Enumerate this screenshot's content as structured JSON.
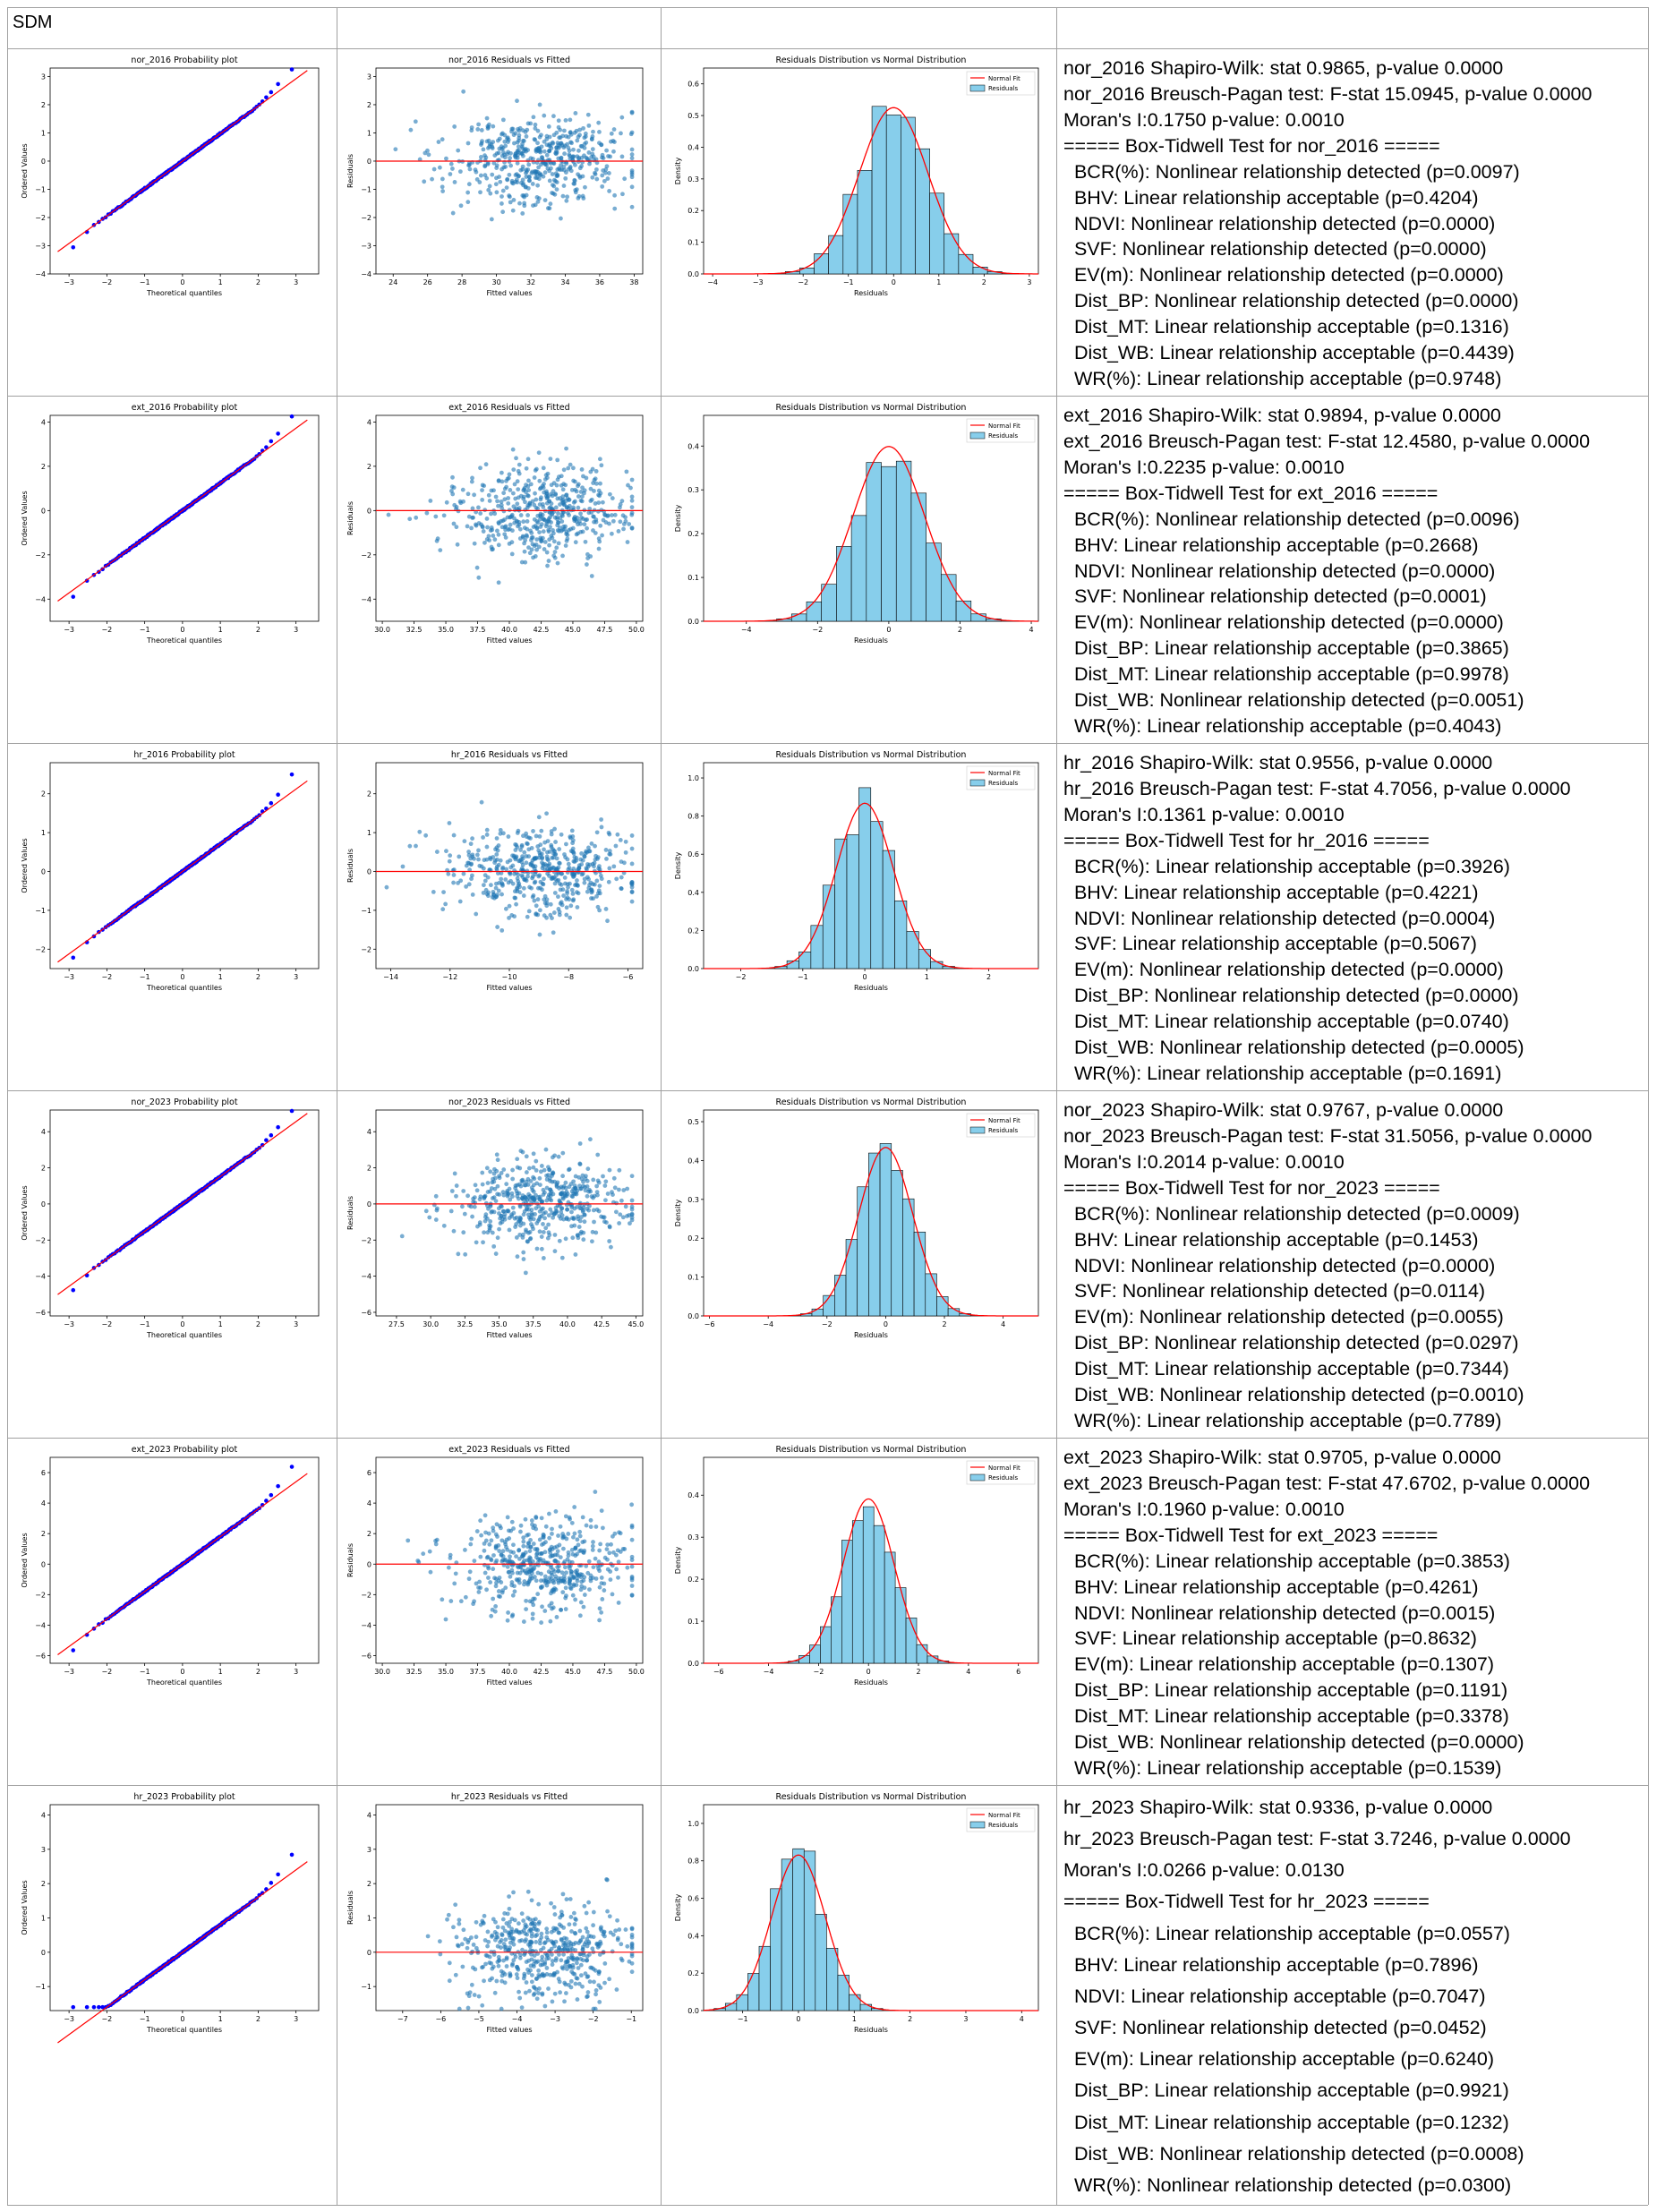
{
  "header": {
    "label": "SDM",
    "cells": [
      "",
      "",
      ""
    ]
  },
  "colors": {
    "qq_points": "#0000ff",
    "fit_line": "#ff0000",
    "scatter_points": "#1f77b4",
    "hist_fill": "#87ceeb",
    "grid_border": "#a0a0a0"
  },
  "common": {
    "qq_xlabel": "Theoretical quantiles",
    "qq_ylabel": "Ordered Values",
    "res_xlabel": "Fitted values",
    "res_ylabel": "Residuals",
    "hist_title": "Residuals Distribution vs Normal Distribution",
    "hist_xlabel": "Residuals",
    "hist_ylabel": "Density",
    "legend_fit": "Normal Fit",
    "legend_res": "Residuals"
  },
  "rows": [
    {
      "id": "nor_2016",
      "qq": {
        "title": "nor_2016 Probability plot",
        "x_ticks": [
          "−3",
          "−2",
          "−1",
          "0",
          "1",
          "2",
          "3"
        ],
        "y_ticks": [
          "−4",
          "−3",
          "−2",
          "−1",
          "0",
          "1",
          "2",
          "3"
        ],
        "ylim": [
          -4,
          3.3
        ]
      },
      "resid": {
        "title": "nor_2016 Residuals vs Fitted",
        "x_ticks": [
          "24",
          "26",
          "28",
          "30",
          "32",
          "34",
          "36",
          "38"
        ],
        "xlim": [
          23,
          38.5
        ],
        "y_ticks": [
          "−4",
          "−3",
          "−2",
          "−1",
          "0",
          "1",
          "2",
          "3"
        ],
        "ylim": [
          -4,
          3.3
        ]
      },
      "hist": {
        "x_ticks": [
          "−4",
          "−3",
          "−2",
          "−1",
          "0",
          "1",
          "2",
          "3"
        ],
        "xlim": [
          -4.2,
          3.2
        ],
        "y_ticks": [
          "0.0",
          "0.1",
          "0.2",
          "0.3",
          "0.4",
          "0.5",
          "0.6"
        ],
        "ymax": 0.65,
        "mu": 0,
        "sd": 0.76
      },
      "stats": [
        "nor_2016 Shapiro-Wilk: stat 0.9865, p-value 0.0000",
        "nor_2016 Breusch-Pagan test: F-stat 15.0945, p-value 0.0000",
        "Moran's I:0.1750 p-value: 0.0010",
        "===== Box-Tidwell Test for nor_2016 =====",
        "  BCR(%): Nonlinear relationship detected (p=0.0097)",
        "  BHV: Linear relationship acceptable (p=0.4204)",
        "  NDVI: Nonlinear relationship detected (p=0.0000)",
        "  SVF: Nonlinear relationship detected (p=0.0000)",
        "  EV(m): Nonlinear relationship detected (p=0.0000)",
        "  Dist_BP: Nonlinear relationship detected (p=0.0000)",
        "  Dist_MT: Linear relationship acceptable (p=0.1316)",
        "  Dist_WB: Linear relationship acceptable (p=0.4439)",
        "  WR(%): Linear relationship acceptable (p=0.9748)"
      ]
    },
    {
      "id": "ext_2016",
      "qq": {
        "title": "ext_2016 Probability plot",
        "x_ticks": [
          "−3",
          "−2",
          "−1",
          "0",
          "1",
          "2",
          "3"
        ],
        "y_ticks": [
          "−4",
          "−2",
          "0",
          "2",
          "4"
        ],
        "ylim": [
          -5,
          4.3
        ]
      },
      "resid": {
        "title": "ext_2016 Residuals vs Fitted",
        "x_ticks": [
          "30.0",
          "32.5",
          "35.0",
          "37.5",
          "40.0",
          "42.5",
          "45.0",
          "47.5",
          "50.0"
        ],
        "xlim": [
          29.5,
          50.5
        ],
        "y_ticks": [
          "−4",
          "−2",
          "0",
          "2",
          "4"
        ],
        "ylim": [
          -5,
          4.3
        ]
      },
      "hist": {
        "x_ticks": [
          "−4",
          "−2",
          "0",
          "2",
          "4"
        ],
        "xlim": [
          -5.2,
          4.2
        ],
        "y_ticks": [
          "0.0",
          "0.1",
          "0.2",
          "0.3",
          "0.4"
        ],
        "ymax": 0.47,
        "mu": 0,
        "sd": 1.0
      },
      "stats": [
        "ext_2016 Shapiro-Wilk: stat 0.9894, p-value 0.0000",
        "ext_2016 Breusch-Pagan test: F-stat 12.4580, p-value 0.0000",
        "Moran's I:0.2235 p-value: 0.0010",
        "===== Box-Tidwell Test for ext_2016 =====",
        "  BCR(%): Nonlinear relationship detected (p=0.0096)",
        "  BHV: Linear relationship acceptable (p=0.2668)",
        "  NDVI: Nonlinear relationship detected (p=0.0000)",
        "  SVF: Nonlinear relationship detected (p=0.0001)",
        "  EV(m): Nonlinear relationship detected (p=0.0000)",
        "  Dist_BP: Linear relationship acceptable (p=0.3865)",
        "  Dist_MT: Linear relationship acceptable (p=0.9978)",
        "  Dist_WB: Nonlinear relationship detected (p=0.0051)",
        "  WR(%): Linear relationship acceptable (p=0.4043)"
      ]
    },
    {
      "id": "hr_2016",
      "qq": {
        "title": "hr_2016 Probability plot",
        "x_ticks": [
          "−3",
          "−2",
          "−1",
          "0",
          "1",
          "2",
          "3"
        ],
        "y_ticks": [
          "−2",
          "−1",
          "0",
          "1",
          "2"
        ],
        "ylim": [
          -2.5,
          2.8
        ]
      },
      "resid": {
        "title": "hr_2016 Residuals vs Fitted",
        "x_ticks": [
          "−14",
          "−12",
          "−10",
          "−8",
          "−6"
        ],
        "xlim": [
          -14.5,
          -5.5
        ],
        "y_ticks": [
          "−2",
          "−1",
          "0",
          "1",
          "2"
        ],
        "ylim": [
          -2.5,
          2.8
        ]
      },
      "hist": {
        "x_ticks": [
          "−2",
          "−1",
          "0",
          "1",
          "2"
        ],
        "xlim": [
          -2.6,
          2.8
        ],
        "y_ticks": [
          "0.0",
          "0.2",
          "0.4",
          "0.6",
          "0.8",
          "1.0"
        ],
        "ymax": 1.08,
        "mu": 0,
        "sd": 0.46
      },
      "stats": [
        "hr_2016 Shapiro-Wilk: stat 0.9556, p-value 0.0000",
        "hr_2016 Breusch-Pagan test: F-stat 4.7056, p-value 0.0000",
        "Moran's I:0.1361 p-value: 0.0010",
        "===== Box-Tidwell Test for hr_2016 =====",
        "  BCR(%): Linear relationship acceptable (p=0.3926)",
        "  BHV: Linear relationship acceptable (p=0.4221)",
        "  NDVI: Nonlinear relationship detected (p=0.0004)",
        "  SVF: Linear relationship acceptable (p=0.5067)",
        "  EV(m): Nonlinear relationship detected (p=0.0000)",
        "  Dist_BP: Nonlinear relationship detected (p=0.0000)",
        "  Dist_MT: Linear relationship acceptable (p=0.0740)",
        "  Dist_WB: Nonlinear relationship detected (p=0.0005)",
        "  WR(%): Linear relationship acceptable (p=0.1691)"
      ]
    },
    {
      "id": "nor_2023",
      "qq": {
        "title": "nor_2023 Probability plot",
        "x_ticks": [
          "−3",
          "−2",
          "−1",
          "0",
          "1",
          "2",
          "3"
        ],
        "y_ticks": [
          "−6",
          "−4",
          "−2",
          "0",
          "2",
          "4"
        ],
        "ylim": [
          -6.2,
          5.2
        ]
      },
      "resid": {
        "title": "nor_2023 Residuals vs Fitted",
        "x_ticks": [
          "27.5",
          "30.0",
          "32.5",
          "35.0",
          "37.5",
          "40.0",
          "42.5",
          "45.0"
        ],
        "xlim": [
          26,
          45.5
        ],
        "y_ticks": [
          "−6",
          "−4",
          "−2",
          "0",
          "2",
          "4"
        ],
        "ylim": [
          -6.2,
          5.2
        ]
      },
      "hist": {
        "x_ticks": [
          "−6",
          "−4",
          "−2",
          "0",
          "2",
          "4"
        ],
        "xlim": [
          -6.2,
          5.2
        ],
        "y_ticks": [
          "0.0",
          "0.1",
          "0.2",
          "0.3",
          "0.4",
          "0.5"
        ],
        "ymax": 0.53,
        "mu": 0,
        "sd": 0.92
      },
      "stats": [
        "nor_2023 Shapiro-Wilk: stat 0.9767, p-value 0.0000",
        "nor_2023 Breusch-Pagan test: F-stat 31.5056, p-value 0.0000",
        "Moran's I:0.2014 p-value: 0.0010",
        "===== Box-Tidwell Test for nor_2023 =====",
        "  BCR(%): Nonlinear relationship detected (p=0.0009)",
        "  BHV: Linear relationship acceptable (p=0.1453)",
        "  NDVI: Nonlinear relationship detected (p=0.0000)",
        "  SVF: Nonlinear relationship detected (p=0.0114)",
        "  EV(m): Nonlinear relationship detected (p=0.0055)",
        "  Dist_BP: Nonlinear relationship detected (p=0.0297)",
        "  Dist_MT: Linear relationship acceptable (p=0.7344)",
        "  Dist_WB: Nonlinear relationship detected (p=0.0010)",
        "  WR(%): Linear relationship acceptable (p=0.7789)"
      ]
    },
    {
      "id": "ext_2023",
      "qq": {
        "title": "ext_2023 Probability plot",
        "x_ticks": [
          "−3",
          "−2",
          "−1",
          "0",
          "1",
          "2",
          "3"
        ],
        "y_ticks": [
          "−6",
          "−4",
          "−2",
          "0",
          "2",
          "4",
          "6"
        ],
        "ylim": [
          -6.5,
          7
        ]
      },
      "resid": {
        "title": "ext_2023 Residuals vs Fitted",
        "x_ticks": [
          "30.0",
          "32.5",
          "35.0",
          "37.5",
          "40.0",
          "42.5",
          "45.0",
          "47.5",
          "50.0"
        ],
        "xlim": [
          29.5,
          50.5
        ],
        "y_ticks": [
          "−6",
          "−4",
          "−2",
          "0",
          "2",
          "4",
          "6"
        ],
        "ylim": [
          -6.5,
          7
        ]
      },
      "hist": {
        "x_ticks": [
          "−6",
          "−4",
          "−2",
          "0",
          "2",
          "4",
          "6"
        ],
        "xlim": [
          -6.6,
          6.8
        ],
        "y_ticks": [
          "0.0",
          "0.1",
          "0.2",
          "0.3",
          "0.4"
        ],
        "ymax": 0.49,
        "mu": 0,
        "sd": 1.02
      },
      "stats": [
        "ext_2023 Shapiro-Wilk: stat 0.9705, p-value 0.0000",
        "ext_2023 Breusch-Pagan test: F-stat 47.6702, p-value 0.0000",
        "Moran's I:0.1960 p-value: 0.0010",
        "===== Box-Tidwell Test for ext_2023 =====",
        "  BCR(%): Linear relationship acceptable (p=0.3853)",
        "  BHV: Linear relationship acceptable (p=0.4261)",
        "  NDVI: Nonlinear relationship detected (p=0.0015)",
        "  SVF: Linear relationship acceptable (p=0.8632)",
        "  EV(m): Linear relationship acceptable (p=0.1307)",
        "  Dist_BP: Linear relationship acceptable (p=0.1191)",
        "  Dist_MT: Linear relationship acceptable (p=0.3378)",
        "  Dist_WB: Nonlinear relationship detected (p=0.0000)",
        "  WR(%): Linear relationship acceptable (p=0.1539)"
      ]
    },
    {
      "id": "hr_2023",
      "qq": {
        "title": "hr_2023 Probability plot",
        "x_ticks": [
          "−3",
          "−2",
          "−1",
          "0",
          "1",
          "2",
          "3"
        ],
        "y_ticks": [
          "−1",
          "0",
          "1",
          "2",
          "3",
          "4"
        ],
        "ylim": [
          -1.7,
          4.3
        ]
      },
      "resid": {
        "title": "hr_2023 Residuals vs Fitted",
        "x_ticks": [
          "−7",
          "−6",
          "−5",
          "−4",
          "−3",
          "−2",
          "−1"
        ],
        "xlim": [
          -7.7,
          -0.7
        ],
        "y_ticks": [
          "−1",
          "0",
          "1",
          "2",
          "3",
          "4"
        ],
        "ylim": [
          -1.7,
          4.3
        ]
      },
      "hist": {
        "x_ticks": [
          "−1",
          "0",
          "1",
          "2",
          "3",
          "4"
        ],
        "xlim": [
          -1.7,
          4.3
        ],
        "y_ticks": [
          "0.0",
          "0.2",
          "0.4",
          "0.6",
          "0.8",
          "1.0"
        ],
        "ymax": 1.1,
        "mu": 0,
        "sd": 0.48
      },
      "stats": [
        "hr_2023 Shapiro-Wilk: stat 0.9336, p-value 0.0000",
        "hr_2023 Breusch-Pagan test: F-stat 3.7246, p-value 0.0000",
        "Moran's I:0.0266 p-value: 0.0130",
        "===== Box-Tidwell Test for hr_2023 =====",
        "  BCR(%): Linear relationship acceptable (p=0.0557)",
        "  BHV: Linear relationship acceptable (p=0.7896)",
        "  NDVI: Linear relationship acceptable (p=0.7047)",
        "  SVF: Nonlinear relationship detected (p=0.0452)",
        "  EV(m): Linear relationship acceptable (p=0.6240)",
        "  Dist_BP: Linear relationship acceptable (p=0.9921)",
        "  Dist_MT: Linear relationship acceptable (p=0.1232)",
        "  Dist_WB: Nonlinear relationship detected (p=0.0008)",
        "  WR(%): Nonlinear relationship detected (p=0.0300)"
      ]
    }
  ]
}
